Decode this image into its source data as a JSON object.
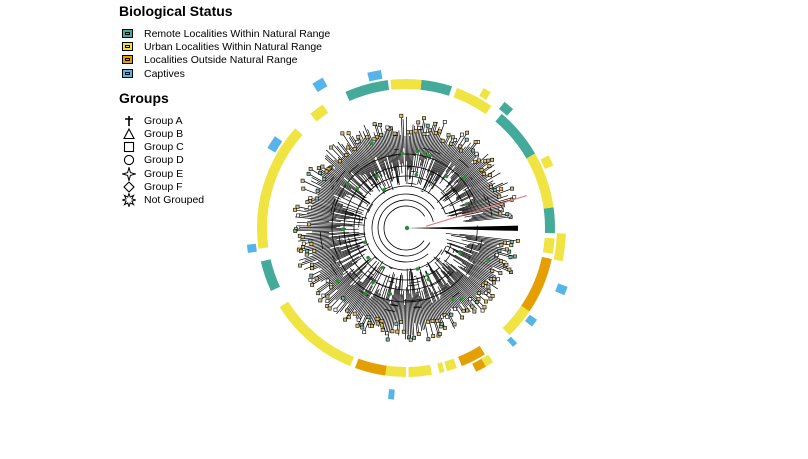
{
  "legend_status": {
    "title": "Biological Status",
    "items": [
      {
        "label": "Remote Localities Within Natural Range",
        "color": "#44AA99"
      },
      {
        "label": "Urban Localities Within Natural Range",
        "color": "#F0E442"
      },
      {
        "label": "Localities Outside Natural Range",
        "color": "#E69F00"
      },
      {
        "label": "Captives",
        "color": "#56B4E9"
      }
    ]
  },
  "legend_groups": {
    "title": "Groups",
    "items": [
      {
        "label": "Group A",
        "shape": "cross"
      },
      {
        "label": "Group B",
        "shape": "triangle"
      },
      {
        "label": "Group C",
        "shape": "square"
      },
      {
        "label": "Group D",
        "shape": "circle"
      },
      {
        "label": "Group E",
        "shape": "four-point-star"
      },
      {
        "label": "Group F",
        "shape": "diamond"
      },
      {
        "label": "Not Grouped",
        "shape": "star"
      }
    ]
  },
  "colors": {
    "remote": "#44AA99",
    "urban": "#F0E442",
    "outside": "#E69F00",
    "captive": "#56B4E9",
    "tree": "#000000",
    "node_marker": "#2E8B3A",
    "highlight_branch": "#E8707A"
  },
  "status_ring": [
    {
      "status": "remote",
      "from": -2,
      "to": 8
    },
    {
      "status": "urban",
      "from": 8,
      "to": 30
    },
    {
      "status": "remote",
      "from": 30,
      "to": 50
    },
    {
      "status": "urban",
      "from": 55,
      "to": 70
    },
    {
      "status": "remote",
      "from": 72,
      "to": 84
    },
    {
      "status": "urban",
      "from": 84,
      "to": 96
    },
    {
      "status": "remote",
      "from": 97,
      "to": 114
    },
    {
      "status": "urban",
      "from": 124,
      "to": 130
    },
    {
      "status": "urban",
      "from": 138,
      "to": 188
    },
    {
      "status": "remote",
      "from": 193,
      "to": 205
    },
    {
      "status": "urban",
      "from": 212,
      "to": 248
    },
    {
      "status": "outside",
      "from": 250,
      "to": 262
    },
    {
      "status": "urban",
      "from": 262,
      "to": 270
    },
    {
      "status": "urban",
      "from": 271,
      "to": 280
    },
    {
      "status": "urban",
      "from": 283,
      "to": 285
    },
    {
      "status": "urban",
      "from": 286,
      "to": 290
    },
    {
      "status": "outside",
      "from": 292,
      "to": 302
    },
    {
      "status": "urban",
      "from": 314,
      "to": 326
    },
    {
      "status": "outside",
      "from": 326,
      "to": 348
    },
    {
      "status": "urban",
      "from": 350,
      "to": 356
    }
  ],
  "status_outer": [
    {
      "status": "urban",
      "from": 23,
      "to": 27
    },
    {
      "status": "remote",
      "from": 48,
      "to": 52
    },
    {
      "status": "urban",
      "from": 58,
      "to": 61
    },
    {
      "status": "captive",
      "from": 99,
      "to": 104
    },
    {
      "status": "captive",
      "from": 145,
      "to": 150
    },
    {
      "status": "captive",
      "from": 186,
      "to": 189
    },
    {
      "status": "outside",
      "from": 296,
      "to": 300
    },
    {
      "status": "urban",
      "from": 300,
      "to": 303
    },
    {
      "status": "captive",
      "from": 312,
      "to": 314
    },
    {
      "status": "captive",
      "from": 322,
      "to": 325
    },
    {
      "status": "urban",
      "from": 348,
      "to": 354
    },
    {
      "status": "urban",
      "from": 354,
      "to": 358
    }
  ],
  "status_far": [
    {
      "status": "captive",
      "from": 119,
      "to": 123
    },
    {
      "status": "captive",
      "from": 264,
      "to": 266
    },
    {
      "status": "captive",
      "from": 337,
      "to": 340
    }
  ]
}
